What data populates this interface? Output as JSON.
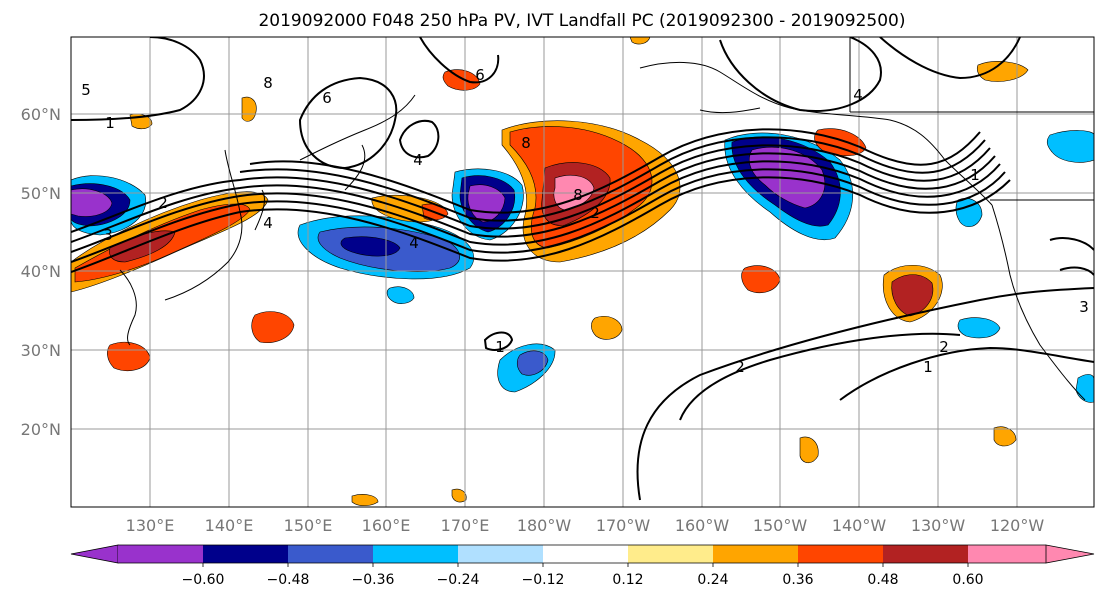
{
  "title": "2019092000 F048 250 hPa PV, IVT Landfall PC (2019092300 - 2019092500)",
  "map": {
    "lat_labels": [
      "60°N",
      "50°N",
      "40°N",
      "30°N",
      "20°N"
    ],
    "lon_labels": [
      "130°E",
      "140°E",
      "150°E",
      "160°E",
      "170°E",
      "180°W",
      "170°W",
      "160°W",
      "150°W",
      "140°W",
      "130°W",
      "120°W"
    ],
    "contour_labels": [
      "1",
      "2",
      "3",
      "4",
      "5",
      "6",
      "8",
      "8",
      "8",
      "6",
      "4",
      "4",
      "3",
      "2",
      "2",
      "1",
      "1",
      "1",
      "2",
      "4"
    ]
  },
  "colorbar": {
    "colors": [
      "#9932cc",
      "#00008b",
      "#3a5acc",
      "#00bfff",
      "#b0e0ff",
      "#ffffff",
      "#ffec8b",
      "#ffa500",
      "#ff4500",
      "#b22222",
      "#ff88b0"
    ],
    "tick_labels": [
      "−0.60",
      "−0.48",
      "−0.36",
      "−0.24",
      "−0.12",
      "0.12",
      "0.24",
      "0.36",
      "0.48",
      "0.60"
    ]
  }
}
